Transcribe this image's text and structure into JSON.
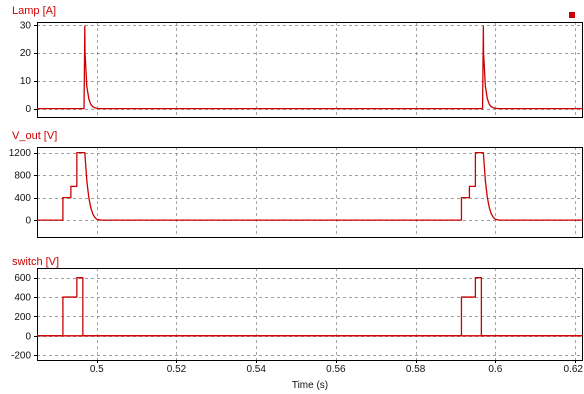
{
  "colors": {
    "trace": "#cc0000",
    "title": "#cc0000",
    "grid": "#7f7f7f",
    "axis": "#000000",
    "legend_marker": "#cc0000"
  },
  "legend_marker_icon": "square-marker-icon",
  "chart_data": [
    {
      "type": "line",
      "title": "Lamp [A]",
      "ylabel": "",
      "xlabel": "",
      "xlim": [
        0.485,
        0.622
      ],
      "ylim": [
        -3,
        31
      ],
      "yticks": [
        0,
        10,
        20,
        30
      ],
      "ytick_labels": [
        "0",
        "10",
        "20",
        "30"
      ],
      "grid": true,
      "series": [
        {
          "x": [
            0.485,
            0.4968,
            0.497,
            0.49705,
            0.4975,
            0.498,
            0.4985,
            0.499,
            0.4995,
            0.5,
            0.501,
            0.5965,
            0.5968,
            0.597,
            0.59705,
            0.5975,
            0.598,
            0.5985,
            0.599,
            0.5995,
            0.6,
            0.601,
            0.622
          ],
          "y": [
            0,
            0,
            29.5,
            20,
            8,
            3.5,
            1.5,
            0.7,
            0.3,
            0.1,
            0,
            0,
            0,
            29.5,
            20,
            8,
            3.5,
            1.5,
            0.7,
            0.3,
            0.1,
            0,
            0
          ]
        }
      ]
    },
    {
      "type": "line",
      "title": "V_out [V]",
      "ylabel": "",
      "xlabel": "",
      "xlim": [
        0.485,
        0.622
      ],
      "ylim": [
        -300,
        1300
      ],
      "yticks": [
        0,
        400,
        800,
        1200
      ],
      "ytick_labels": [
        "0",
        "400",
        "800",
        "1200"
      ],
      "grid": true,
      "series": [
        {
          "x": [
            0.485,
            0.4915,
            0.4915,
            0.4935,
            0.4935,
            0.495,
            0.495,
            0.497,
            0.4975,
            0.498,
            0.4985,
            0.499,
            0.4995,
            0.5,
            0.501,
            0.5915,
            0.5915,
            0.5935,
            0.5935,
            0.595,
            0.595,
            0.597,
            0.5975,
            0.598,
            0.5985,
            0.599,
            0.5995,
            0.6,
            0.601,
            0.622
          ],
          "y": [
            0,
            0,
            400,
            400,
            600,
            600,
            1200,
            1200,
            700,
            400,
            220,
            110,
            50,
            15,
            0,
            0,
            400,
            400,
            600,
            600,
            1200,
            1200,
            700,
            400,
            220,
            110,
            50,
            15,
            0,
            0
          ]
        }
      ]
    },
    {
      "type": "line",
      "title": "switch [V]",
      "ylabel": "",
      "xlabel": "Time (s)",
      "xlim": [
        0.485,
        0.622
      ],
      "ylim": [
        -250,
        700
      ],
      "yticks": [
        -200,
        0,
        200,
        400,
        600
      ],
      "ytick_labels": [
        "-200",
        "0",
        "200",
        "400",
        "600"
      ],
      "xticks": [
        0.5,
        0.52,
        0.54,
        0.56,
        0.58,
        0.6,
        0.62
      ],
      "xtick_labels": [
        "0.5",
        "0.52",
        "0.54",
        "0.56",
        "0.58",
        "0.6",
        "0.62"
      ],
      "grid": true,
      "series": [
        {
          "x": [
            0.485,
            0.4915,
            0.4915,
            0.495,
            0.495,
            0.4965,
            0.4965,
            0.497,
            0.622
          ],
          "y": [
            0,
            0,
            400,
            400,
            600,
            600,
            5,
            0,
            0
          ]
        },
        {
          "x": [
            0.485,
            0.5915,
            0.5915,
            0.595,
            0.595,
            0.5965,
            0.5965,
            0.597,
            0.622
          ],
          "y": [
            0,
            0,
            400,
            400,
            600,
            600,
            5,
            0,
            0
          ]
        }
      ]
    }
  ]
}
